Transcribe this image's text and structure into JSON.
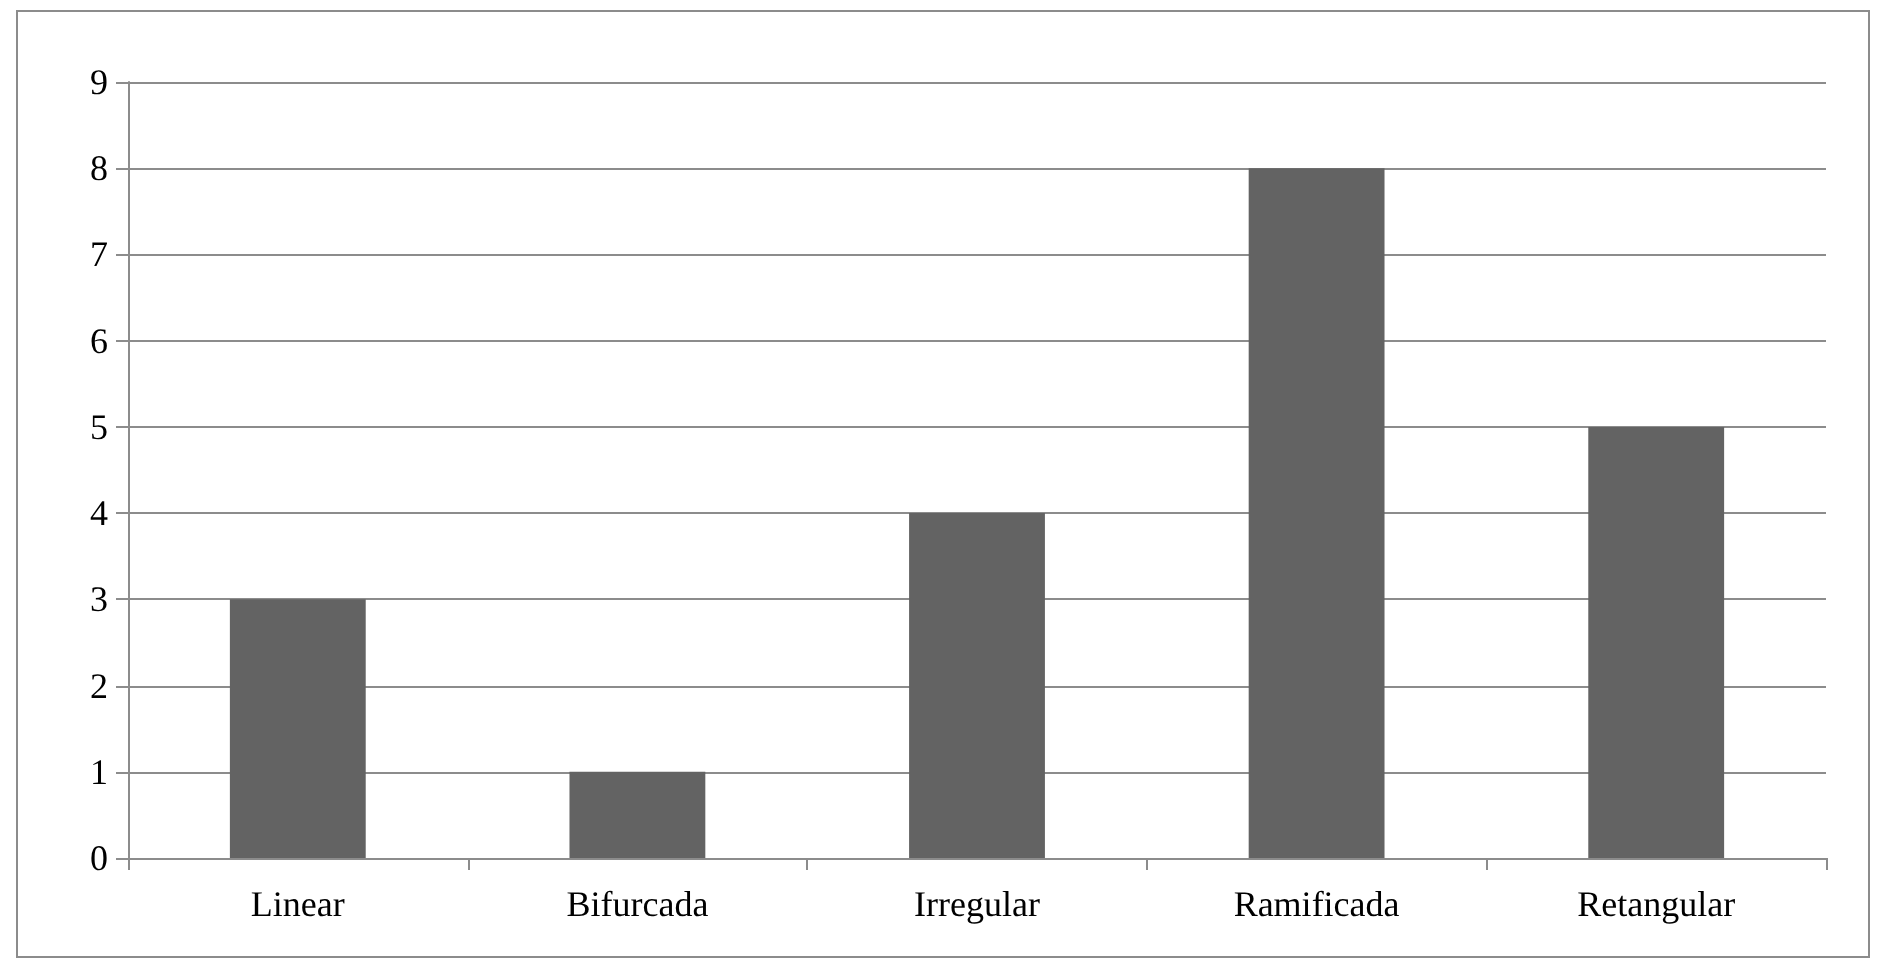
{
  "chart_data": {
    "type": "bar",
    "categories": [
      "Linear",
      "Bifurcada",
      "Irregular",
      "Ramificada",
      "Retangular"
    ],
    "values": [
      3,
      1,
      4,
      8,
      5
    ],
    "color": "#636363",
    "ylim": [
      0,
      9
    ],
    "yticks": [
      0,
      1,
      2,
      3,
      4,
      5,
      6,
      7,
      8,
      9
    ],
    "grid": "y"
  }
}
